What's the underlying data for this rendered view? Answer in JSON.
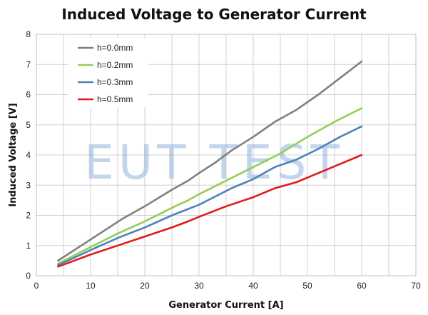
{
  "chart_data": {
    "type": "line",
    "title": "Induced Voltage to Generator Current",
    "xlabel": "Generator Current [A]",
    "ylabel": "Induced Voltage [V]",
    "xlim": [
      0,
      70
    ],
    "ylim": [
      0,
      8
    ],
    "xticks": [
      0,
      10,
      20,
      30,
      40,
      50,
      60,
      70
    ],
    "yticks": [
      0,
      1,
      2,
      3,
      4,
      5,
      6,
      7,
      8
    ],
    "grid": true,
    "legend_position": "top-left",
    "watermark": "EUT TEST",
    "series": [
      {
        "name": "h=0.0mm",
        "color": "#808080",
        "x": [
          4,
          10,
          16,
          20,
          25,
          28,
          30,
          33,
          36,
          40,
          44,
          48,
          52,
          56,
          60
        ],
        "y": [
          0.5,
          1.2,
          1.9,
          2.3,
          2.85,
          3.15,
          3.4,
          3.75,
          4.15,
          4.6,
          5.1,
          5.5,
          6.0,
          6.55,
          7.1
        ]
      },
      {
        "name": "h=0.2mm",
        "color": "#92d050",
        "x": [
          4,
          10,
          15,
          20,
          25,
          28,
          30,
          35,
          40,
          45,
          50,
          55,
          60
        ],
        "y": [
          0.4,
          0.95,
          1.4,
          1.8,
          2.25,
          2.5,
          2.7,
          3.15,
          3.6,
          4.05,
          4.6,
          5.1,
          5.55
        ]
      },
      {
        "name": "h=0.3mm",
        "color": "#4f81bd",
        "x": [
          4,
          10,
          15,
          20,
          25,
          30,
          36,
          40,
          44,
          48,
          52,
          56,
          60
        ],
        "y": [
          0.35,
          0.85,
          1.25,
          1.6,
          2.0,
          2.35,
          2.9,
          3.2,
          3.6,
          3.85,
          4.2,
          4.6,
          4.95
        ]
      },
      {
        "name": "h=0.5mm",
        "color": "#e31a1c",
        "x": [
          4,
          10,
          15,
          20,
          25,
          28,
          30,
          35,
          40,
          44,
          48,
          52,
          56,
          60
        ],
        "y": [
          0.3,
          0.7,
          1.0,
          1.3,
          1.6,
          1.8,
          1.95,
          2.3,
          2.6,
          2.9,
          3.1,
          3.4,
          3.7,
          4.0
        ]
      }
    ]
  }
}
